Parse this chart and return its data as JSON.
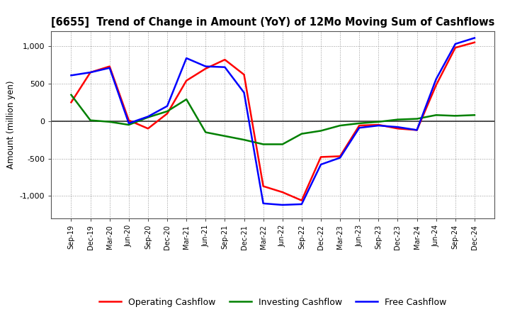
{
  "title": "[6655]  Trend of Change in Amount (YoY) of 12Mo Moving Sum of Cashflows",
  "ylabel": "Amount (million yen)",
  "x_labels": [
    "Sep-19",
    "Dec-19",
    "Mar-20",
    "Jun-20",
    "Sep-20",
    "Dec-20",
    "Mar-21",
    "Jun-21",
    "Sep-21",
    "Dec-21",
    "Mar-22",
    "Jun-22",
    "Sep-22",
    "Dec-22",
    "Mar-23",
    "Jun-23",
    "Sep-23",
    "Dec-23",
    "Mar-24",
    "Jun-24",
    "Sep-24",
    "Dec-24"
  ],
  "operating": [
    250,
    650,
    730,
    10,
    -100,
    100,
    540,
    700,
    820,
    620,
    -870,
    -950,
    -1060,
    -480,
    -470,
    -60,
    -50,
    -100,
    -120,
    480,
    980,
    1050
  ],
  "investing": [
    350,
    10,
    -10,
    -50,
    50,
    130,
    290,
    -150,
    -200,
    -250,
    -310,
    -310,
    -170,
    -130,
    -60,
    -30,
    -10,
    20,
    30,
    80,
    70,
    80
  ],
  "free": [
    610,
    650,
    710,
    -30,
    60,
    200,
    840,
    730,
    720,
    380,
    -1100,
    -1120,
    -1110,
    -580,
    -490,
    -90,
    -60,
    -80,
    -120,
    560,
    1030,
    1110
  ],
  "ylim": [
    -1300,
    1200
  ],
  "yticks": [
    -1000,
    -500,
    0,
    500,
    1000
  ],
  "operating_color": "#FF0000",
  "investing_color": "#008000",
  "free_color": "#0000FF",
  "line_width": 1.8,
  "bg_color": "#FFFFFF",
  "plot_bg_color": "#FFFFFF",
  "grid_color": "#999999",
  "zero_line_color": "#333333"
}
